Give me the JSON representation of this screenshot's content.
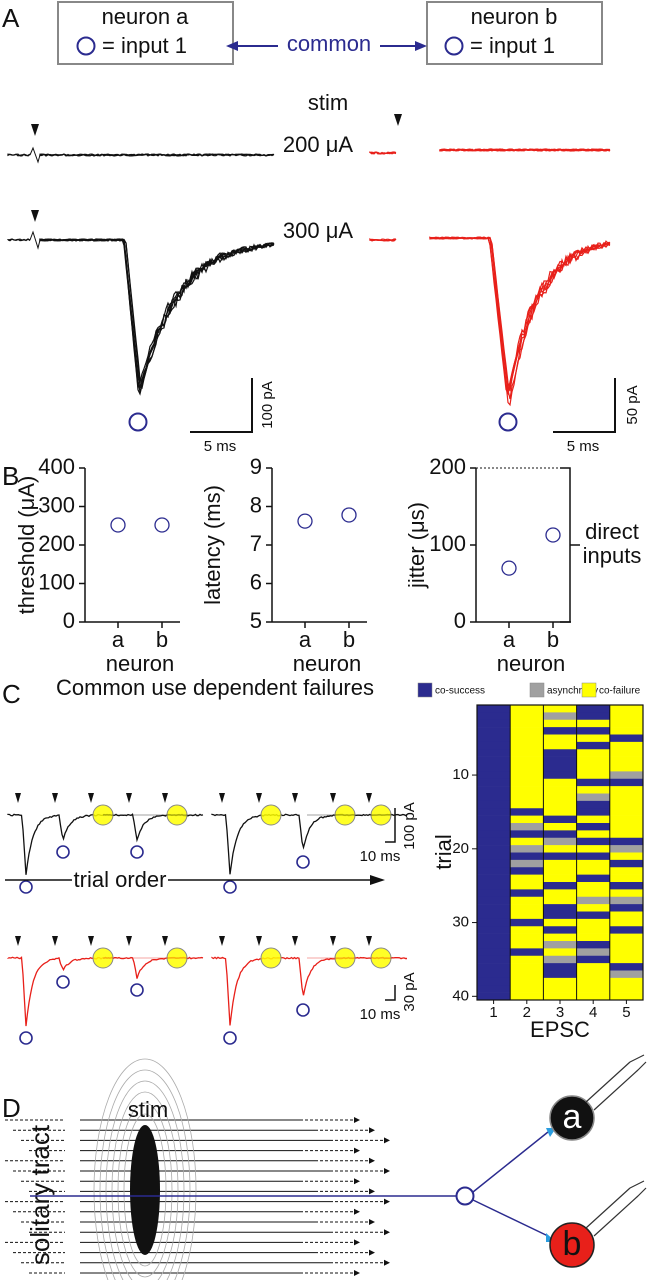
{
  "panel_labels": [
    "A",
    "B",
    "C",
    "D"
  ],
  "panel_a": {
    "neuron_a": "neuron a",
    "neuron_b": "neuron b",
    "input_a": "=  input 1",
    "input_b": "=  input 1",
    "common": "common",
    "stim": "stim",
    "intensities": [
      "200 μA",
      "300 μA"
    ],
    "scale_black": {
      "y": "100 pA",
      "x": "5 ms"
    },
    "scale_red": {
      "y": "50 pA",
      "x": "5 ms"
    }
  },
  "panel_b_annotation": [
    "direct",
    "inputs"
  ],
  "panel_c": {
    "title": "Common use dependent failures",
    "arrow_label": "trial order",
    "scale_black": {
      "y": "100 pA",
      "x": "10 ms"
    },
    "scale_red": {
      "y": "30 pA",
      "x": "10 ms"
    }
  },
  "panel_d": {
    "stim": "stim",
    "tract": "solitary tract",
    "neuron_a": "a",
    "neuron_b": "b"
  },
  "chart_data": [
    {
      "type": "scatter",
      "y_label": "threshold (μA)",
      "x_label": "neuron",
      "categories": [
        "a",
        "b"
      ],
      "values": [
        252,
        252
      ],
      "color": "#2b2b8f",
      "ylim": [
        0,
        400
      ],
      "yticks": [
        0,
        100,
        200,
        300,
        400
      ]
    },
    {
      "type": "scatter",
      "y_label": "latency (ms)",
      "x_label": "neuron",
      "categories": [
        "a",
        "b"
      ],
      "values": [
        7.62,
        7.78
      ],
      "color": "#2b2b8f",
      "ylim": [
        5,
        9
      ],
      "yticks": [
        5,
        6,
        7,
        8,
        9
      ]
    },
    {
      "type": "scatter",
      "y_label": "jitter (μs)",
      "x_label": "neuron",
      "categories": [
        "a",
        "b"
      ],
      "values": [
        70,
        113
      ],
      "color": "#2b2b8f",
      "ylim": [
        0,
        200
      ],
      "yticks": [
        0,
        100,
        200
      ]
    },
    {
      "type": "heatmap",
      "x_label": "EPSC",
      "y_label": "trial",
      "x": [
        1,
        2,
        3,
        4,
        5
      ],
      "xticks": [
        1,
        2,
        3,
        4,
        5
      ],
      "ylim": [
        0.5,
        40.5
      ],
      "yticks": [
        10,
        20,
        30,
        40
      ],
      "legend": [
        {
          "name": "co-success",
          "color": "#2b2b8f"
        },
        {
          "name": "asynchrony",
          "color": "#a0a0a0"
        },
        {
          "name": "co-failure",
          "color": "#ffff00"
        }
      ],
      "values": [
        [
          0,
          2,
          2,
          0,
          2
        ],
        [
          0,
          2,
          1,
          0,
          2
        ],
        [
          0,
          2,
          2,
          2,
          2
        ],
        [
          0,
          2,
          0,
          0,
          2
        ],
        [
          0,
          2,
          2,
          2,
          0
        ],
        [
          0,
          2,
          2,
          0,
          2
        ],
        [
          0,
          2,
          0,
          2,
          2
        ],
        [
          0,
          2,
          0,
          2,
          2
        ],
        [
          0,
          2,
          0,
          2,
          2
        ],
        [
          0,
          2,
          0,
          2,
          1
        ],
        [
          0,
          2,
          2,
          0,
          0
        ],
        [
          0,
          2,
          2,
          2,
          2
        ],
        [
          0,
          2,
          2,
          1,
          2
        ],
        [
          0,
          2,
          2,
          0,
          2
        ],
        [
          0,
          0,
          2,
          0,
          2
        ],
        [
          0,
          2,
          0,
          2,
          2
        ],
        [
          0,
          1,
          2,
          0,
          2
        ],
        [
          0,
          0,
          0,
          2,
          2
        ],
        [
          0,
          2,
          1,
          0,
          0
        ],
        [
          0,
          1,
          2,
          2,
          1
        ],
        [
          0,
          0,
          0,
          0,
          2
        ],
        [
          0,
          1,
          2,
          2,
          0
        ],
        [
          0,
          0,
          2,
          2,
          2
        ],
        [
          0,
          2,
          2,
          0,
          2
        ],
        [
          0,
          2,
          0,
          2,
          0
        ],
        [
          0,
          0,
          2,
          2,
          2
        ],
        [
          0,
          2,
          2,
          1,
          1
        ],
        [
          0,
          2,
          0,
          2,
          0
        ],
        [
          0,
          2,
          0,
          0,
          2
        ],
        [
          0,
          0,
          2,
          2,
          2
        ],
        [
          0,
          2,
          0,
          2,
          0
        ],
        [
          0,
          2,
          2,
          2,
          2
        ],
        [
          0,
          2,
          1,
          0,
          2
        ],
        [
          0,
          0,
          2,
          1,
          2
        ],
        [
          0,
          2,
          1,
          0,
          2
        ],
        [
          0,
          2,
          0,
          2,
          0
        ],
        [
          0,
          2,
          0,
          2,
          1
        ],
        [
          0,
          2,
          2,
          2,
          2
        ],
        [
          0,
          2,
          2,
          2,
          2
        ],
        [
          0,
          2,
          2,
          2,
          2
        ]
      ]
    }
  ]
}
